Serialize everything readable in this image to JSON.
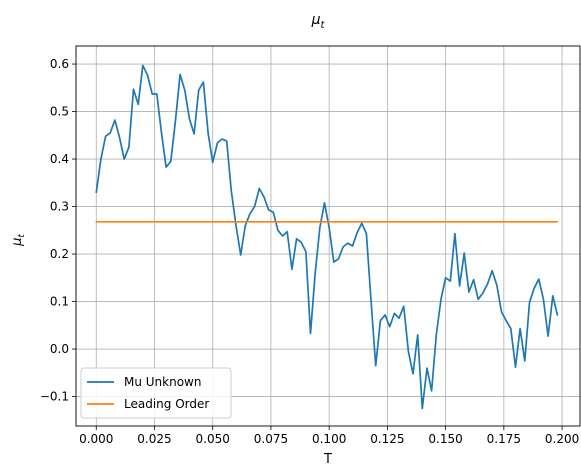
{
  "chart_data": {
    "type": "line",
    "title": "μ",
    "title_sub": "t",
    "xlabel": "T",
    "ylabel": "μ",
    "ylabel_sub": "t",
    "xlim": [
      -0.0087,
      0.2077
    ],
    "ylim": [
      -0.162,
      0.638
    ],
    "xticks": [
      0.0,
      0.025,
      0.05,
      0.075,
      0.1,
      0.125,
      0.15,
      0.175,
      0.2
    ],
    "xtick_labels": [
      "0.000",
      "0.025",
      "0.050",
      "0.075",
      "0.100",
      "0.125",
      "0.150",
      "0.175",
      "0.200"
    ],
    "yticks": [
      -0.1,
      0.0,
      0.1,
      0.2,
      0.3,
      0.4,
      0.5,
      0.6
    ],
    "ytick_labels": [
      "−0.1",
      "0.0",
      "0.1",
      "0.2",
      "0.3",
      "0.4",
      "0.5",
      "0.6"
    ],
    "grid": true,
    "legend_position": "lower-left",
    "series": [
      {
        "name": "Mu Unknown",
        "color": "#1f77b4",
        "x": [
          0.0,
          0.002,
          0.004,
          0.006,
          0.008,
          0.01,
          0.012,
          0.014,
          0.016,
          0.018,
          0.02,
          0.022,
          0.024,
          0.026,
          0.028,
          0.03,
          0.032,
          0.034,
          0.036,
          0.038,
          0.04,
          0.042,
          0.044,
          0.046,
          0.048,
          0.05,
          0.052,
          0.054,
          0.056,
          0.058,
          0.06,
          0.062,
          0.064,
          0.066,
          0.068,
          0.07,
          0.072,
          0.074,
          0.076,
          0.078,
          0.08,
          0.082,
          0.084,
          0.086,
          0.088,
          0.09,
          0.092,
          0.094,
          0.096,
          0.098,
          0.1,
          0.102,
          0.104,
          0.106,
          0.108,
          0.11,
          0.112,
          0.114,
          0.116,
          0.118,
          0.12,
          0.122,
          0.124,
          0.126,
          0.128,
          0.13,
          0.132,
          0.134,
          0.136,
          0.138,
          0.14,
          0.142,
          0.144,
          0.146,
          0.148,
          0.15,
          0.152,
          0.154,
          0.156,
          0.158,
          0.16,
          0.162,
          0.164,
          0.166,
          0.168,
          0.17,
          0.172,
          0.174,
          0.176,
          0.178,
          0.18,
          0.182,
          0.184,
          0.186,
          0.188,
          0.19,
          0.192,
          0.194,
          0.196,
          0.198
        ],
        "y": [
          0.33,
          0.4,
          0.448,
          0.455,
          0.482,
          0.445,
          0.4,
          0.425,
          0.547,
          0.515,
          0.597,
          0.577,
          0.537,
          0.537,
          0.455,
          0.383,
          0.395,
          0.48,
          0.578,
          0.545,
          0.485,
          0.453,
          0.545,
          0.562,
          0.455,
          0.393,
          0.434,
          0.442,
          0.438,
          0.333,
          0.26,
          0.198,
          0.26,
          0.285,
          0.3,
          0.338,
          0.32,
          0.293,
          0.288,
          0.25,
          0.238,
          0.247,
          0.168,
          0.232,
          0.225,
          0.205,
          0.033,
          0.16,
          0.255,
          0.308,
          0.255,
          0.183,
          0.19,
          0.215,
          0.223,
          0.217,
          0.245,
          0.265,
          0.243,
          0.1,
          -0.035,
          0.06,
          0.072,
          0.047,
          0.075,
          0.065,
          0.09,
          -0.005,
          -0.052,
          0.03,
          -0.125,
          -0.04,
          -0.088,
          0.03,
          0.105,
          0.15,
          0.143,
          0.243,
          0.133,
          0.202,
          0.12,
          0.146,
          0.105,
          0.118,
          0.137,
          0.165,
          0.134,
          0.078,
          0.06,
          0.043,
          -0.038,
          0.043,
          -0.025,
          0.098,
          0.128,
          0.147,
          0.105,
          0.027,
          0.112,
          0.072
        ]
      },
      {
        "name": "Leading Order",
        "color": "#ff7f0e",
        "x": [
          0.0,
          0.198
        ],
        "y": [
          0.268,
          0.268
        ]
      }
    ]
  }
}
